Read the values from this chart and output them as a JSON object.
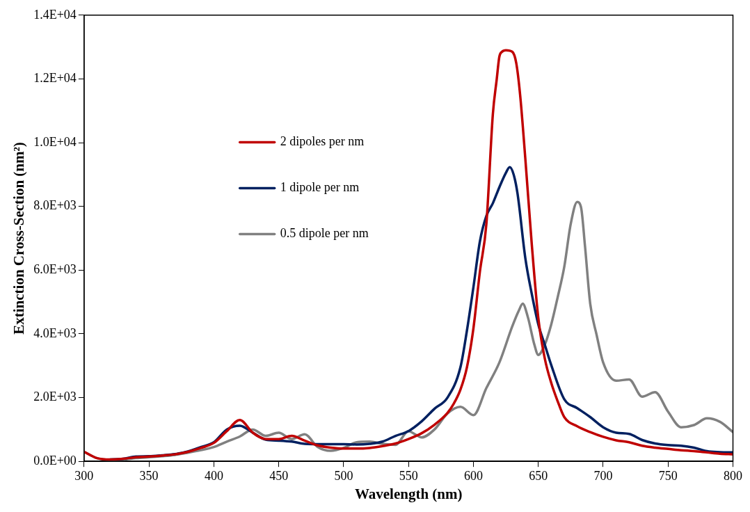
{
  "chart_data": {
    "type": "line",
    "xlabel": "Wavelength (nm)",
    "ylabel": "Extinction Cross-Section (nm²)",
    "xlim": [
      300,
      800
    ],
    "xticks": [
      300,
      350,
      400,
      450,
      500,
      550,
      600,
      650,
      700,
      750,
      800
    ],
    "ylim": [
      0,
      14000
    ],
    "yticks": [
      {
        "value": 0,
        "label": "0.0E+00"
      },
      {
        "value": 2000,
        "label": "2.0E+03"
      },
      {
        "value": 4000,
        "label": "4.0E+03"
      },
      {
        "value": 6000,
        "label": "6.0E+03"
      },
      {
        "value": 8000,
        "label": "8.0E+03"
      },
      {
        "value": 10000,
        "label": "1.0E+04"
      },
      {
        "value": 12000,
        "label": "1.2E+04"
      },
      {
        "value": 14000,
        "label": "1.4E+04"
      }
    ],
    "grid": false,
    "legend": "top left",
    "marker": "none",
    "line_style": "solid",
    "series": [
      {
        "name": "2 dipoles per nm",
        "color": "#c00000",
        "x": [
          300,
          310,
          320,
          330,
          340,
          350,
          360,
          370,
          380,
          390,
          400,
          410,
          420,
          430,
          440,
          450,
          460,
          470,
          480,
          490,
          500,
          510,
          520,
          530,
          540,
          550,
          560,
          570,
          580,
          585,
          590,
          595,
          600,
          605,
          610,
          615,
          618,
          620,
          622,
          625,
          630,
          633,
          636,
          640,
          645,
          650,
          655,
          660,
          665,
          670,
          680,
          690,
          700,
          710,
          720,
          730,
          740,
          750,
          760,
          770,
          780,
          790,
          800
        ],
        "values": [
          300,
          100,
          60,
          80,
          130,
          150,
          180,
          220,
          300,
          420,
          580,
          950,
          1300,
          900,
          700,
          700,
          800,
          650,
          500,
          430,
          400,
          400,
          420,
          480,
          560,
          700,
          880,
          1150,
          1520,
          1820,
          2250,
          2950,
          4170,
          5950,
          7450,
          10900,
          12000,
          12700,
          12850,
          12900,
          12850,
          12500,
          11500,
          9500,
          6800,
          4500,
          3230,
          2460,
          1880,
          1390,
          1100,
          920,
          770,
          660,
          600,
          490,
          430,
          390,
          350,
          320,
          280,
          240,
          220
        ]
      },
      {
        "name": "1 dipole per nm",
        "color": "#002060",
        "x": [
          320,
          330,
          340,
          350,
          360,
          370,
          380,
          390,
          400,
          410,
          420,
          430,
          440,
          450,
          460,
          470,
          480,
          490,
          500,
          510,
          520,
          530,
          540,
          550,
          560,
          570,
          580,
          590,
          595,
          600,
          605,
          610,
          615,
          620,
          625,
          628,
          631,
          634,
          640,
          645,
          650,
          655,
          660,
          670,
          680,
          690,
          700,
          710,
          720,
          730,
          740,
          750,
          760,
          770,
          780,
          790,
          800
        ],
        "values": [
          60,
          80,
          150,
          160,
          190,
          230,
          310,
          450,
          600,
          1000,
          1120,
          900,
          680,
          650,
          620,
          550,
          540,
          540,
          540,
          530,
          550,
          620,
          800,
          950,
          1250,
          1650,
          2000,
          2950,
          4100,
          5460,
          6900,
          7700,
          8100,
          8600,
          9050,
          9230,
          9000,
          8400,
          6380,
          5250,
          4300,
          3660,
          3020,
          1950,
          1670,
          1390,
          1070,
          900,
          860,
          670,
          560,
          510,
          490,
          430,
          320,
          290,
          280
        ]
      },
      {
        "name": "0.5 dipole per nm",
        "color": "#808080",
        "x": [
          300,
          310,
          320,
          330,
          340,
          350,
          360,
          370,
          380,
          390,
          400,
          410,
          420,
          430,
          440,
          450,
          460,
          470,
          480,
          490,
          500,
          510,
          520,
          530,
          540,
          550,
          555,
          560,
          570,
          580,
          590,
          600,
          610,
          620,
          630,
          635,
          638,
          642,
          647,
          650,
          655,
          660,
          665,
          670,
          675,
          680,
          683,
          686,
          690,
          695,
          700,
          710,
          720,
          730,
          740,
          750,
          760,
          770,
          780,
          790,
          800
        ],
        "values": [
          300,
          100,
          50,
          60,
          100,
          130,
          160,
          200,
          270,
          350,
          450,
          620,
          780,
          1000,
          800,
          900,
          700,
          850,
          450,
          330,
          420,
          600,
          620,
          550,
          520,
          950,
          850,
          750,
          1000,
          1500,
          1710,
          1450,
          2300,
          3100,
          4240,
          4730,
          4950,
          4520,
          3660,
          3340,
          3660,
          4300,
          5160,
          6100,
          7450,
          8140,
          7960,
          6750,
          4950,
          3960,
          3100,
          2530,
          2570,
          2030,
          2170,
          1560,
          1070,
          1140,
          1350,
          1240,
          920
        ]
      }
    ]
  }
}
